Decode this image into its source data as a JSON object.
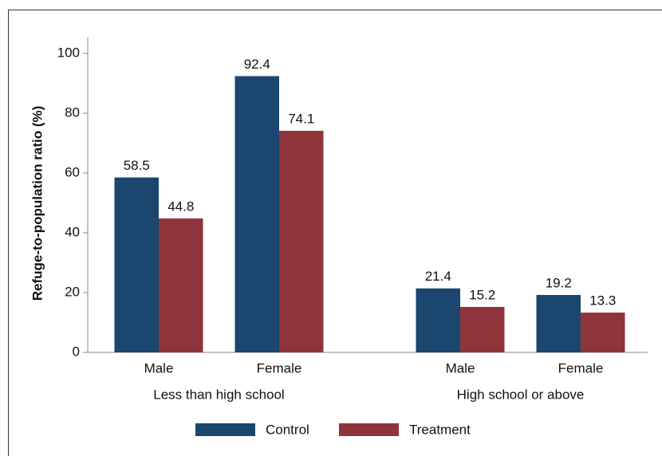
{
  "chart_data": {
    "type": "bar",
    "y_axis_label": "Refuge-to-population ratio (%)",
    "groups": [
      {
        "label": "Less than high school",
        "categories": [
          "Male",
          "Female"
        ]
      },
      {
        "label": "High school or above",
        "categories": [
          "Male",
          "Female"
        ]
      }
    ],
    "series": [
      {
        "name": "Control",
        "color": "#1a466f",
        "values": [
          58.5,
          92.4,
          21.4,
          19.2
        ]
      },
      {
        "name": "Treatment",
        "color": "#8f343b",
        "values": [
          44.8,
          74.1,
          15.2,
          13.3
        ]
      }
    ],
    "ylim": [
      0,
      100
    ],
    "yticks": [
      0,
      20,
      40,
      60,
      80,
      100
    ],
    "legend": "bottom"
  }
}
